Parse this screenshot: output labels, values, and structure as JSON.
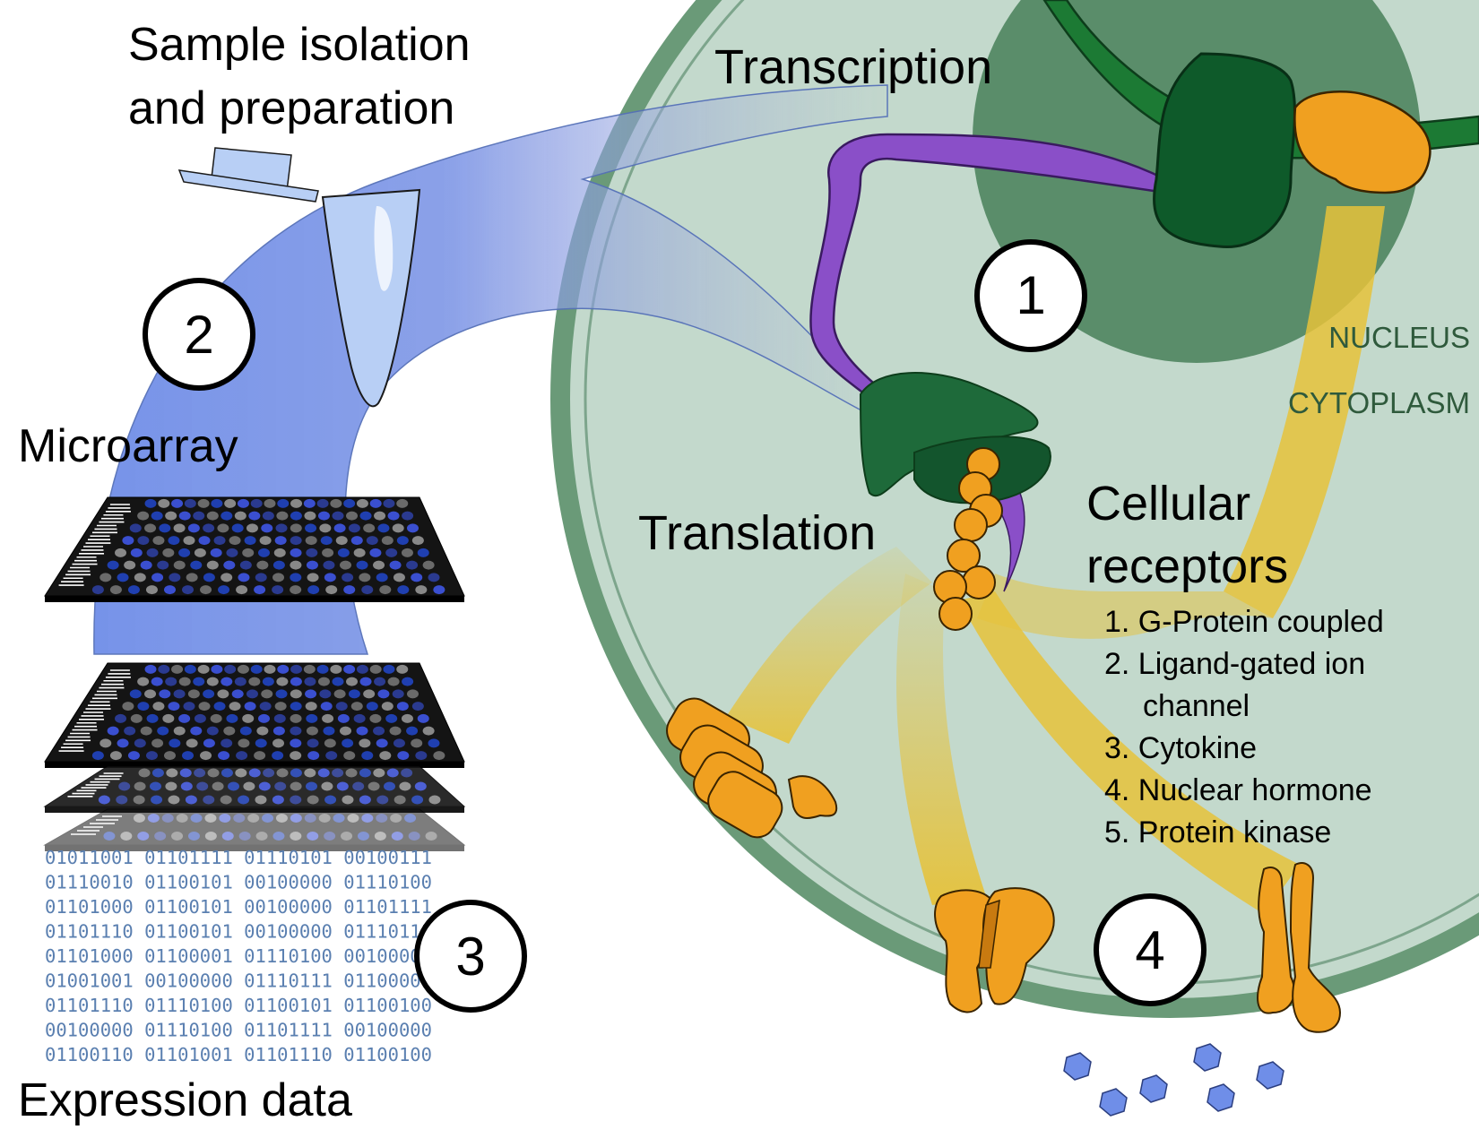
{
  "labels": {
    "sample_isolation_line1": "Sample isolation",
    "sample_isolation_line2": "and preparation",
    "transcription": "Transcription",
    "translation": "Translation",
    "microarray": "Microarray",
    "expression_data": "Expression data",
    "nucleus": "NUCLEUS",
    "cytoplasm": "CYTOPLASM",
    "cellular_receptors_line1": "Cellular",
    "cellular_receptors_line2": "receptors"
  },
  "steps": [
    "1",
    "2",
    "3",
    "4"
  ],
  "receptor_list": [
    "1. G-Protein coupled",
    "2. Ligand-gated ion",
    "channel",
    "3. Cytokine",
    "4. Nuclear hormone",
    "5. Protein kinase"
  ],
  "binary_rows": [
    "01011001 01101111 01110101 00100111",
    "01110010 01100101 00100000 01110100",
    "01101000 01100101 00100000 01101111",
    "01101110 01100101 00100000 01110111",
    "01101000 01100001 01110100 00100000",
    "01001001 00100000 01110111 01100001",
    "01101110 01110100 01100101 01100100",
    "00100000 01110100 01101111 00100000",
    "01100110 01101001 01101110 01100100"
  ],
  "colors": {
    "cell_fill": "#c3d9cc",
    "cell_border": "#6a9a78",
    "nucleus": "#5a8d6a",
    "dark_green": "#1e6a3a",
    "purple": "#8a4fc8",
    "orange": "#f0a020",
    "blue_arc": "#6f8ee8",
    "yellow_path": "#e6c23a",
    "binary_text": "#5a7fb0"
  },
  "icons": [
    "microcentrifuge-tube-icon",
    "microarray-chip-icon",
    "ligand-hexagon-icon"
  ]
}
